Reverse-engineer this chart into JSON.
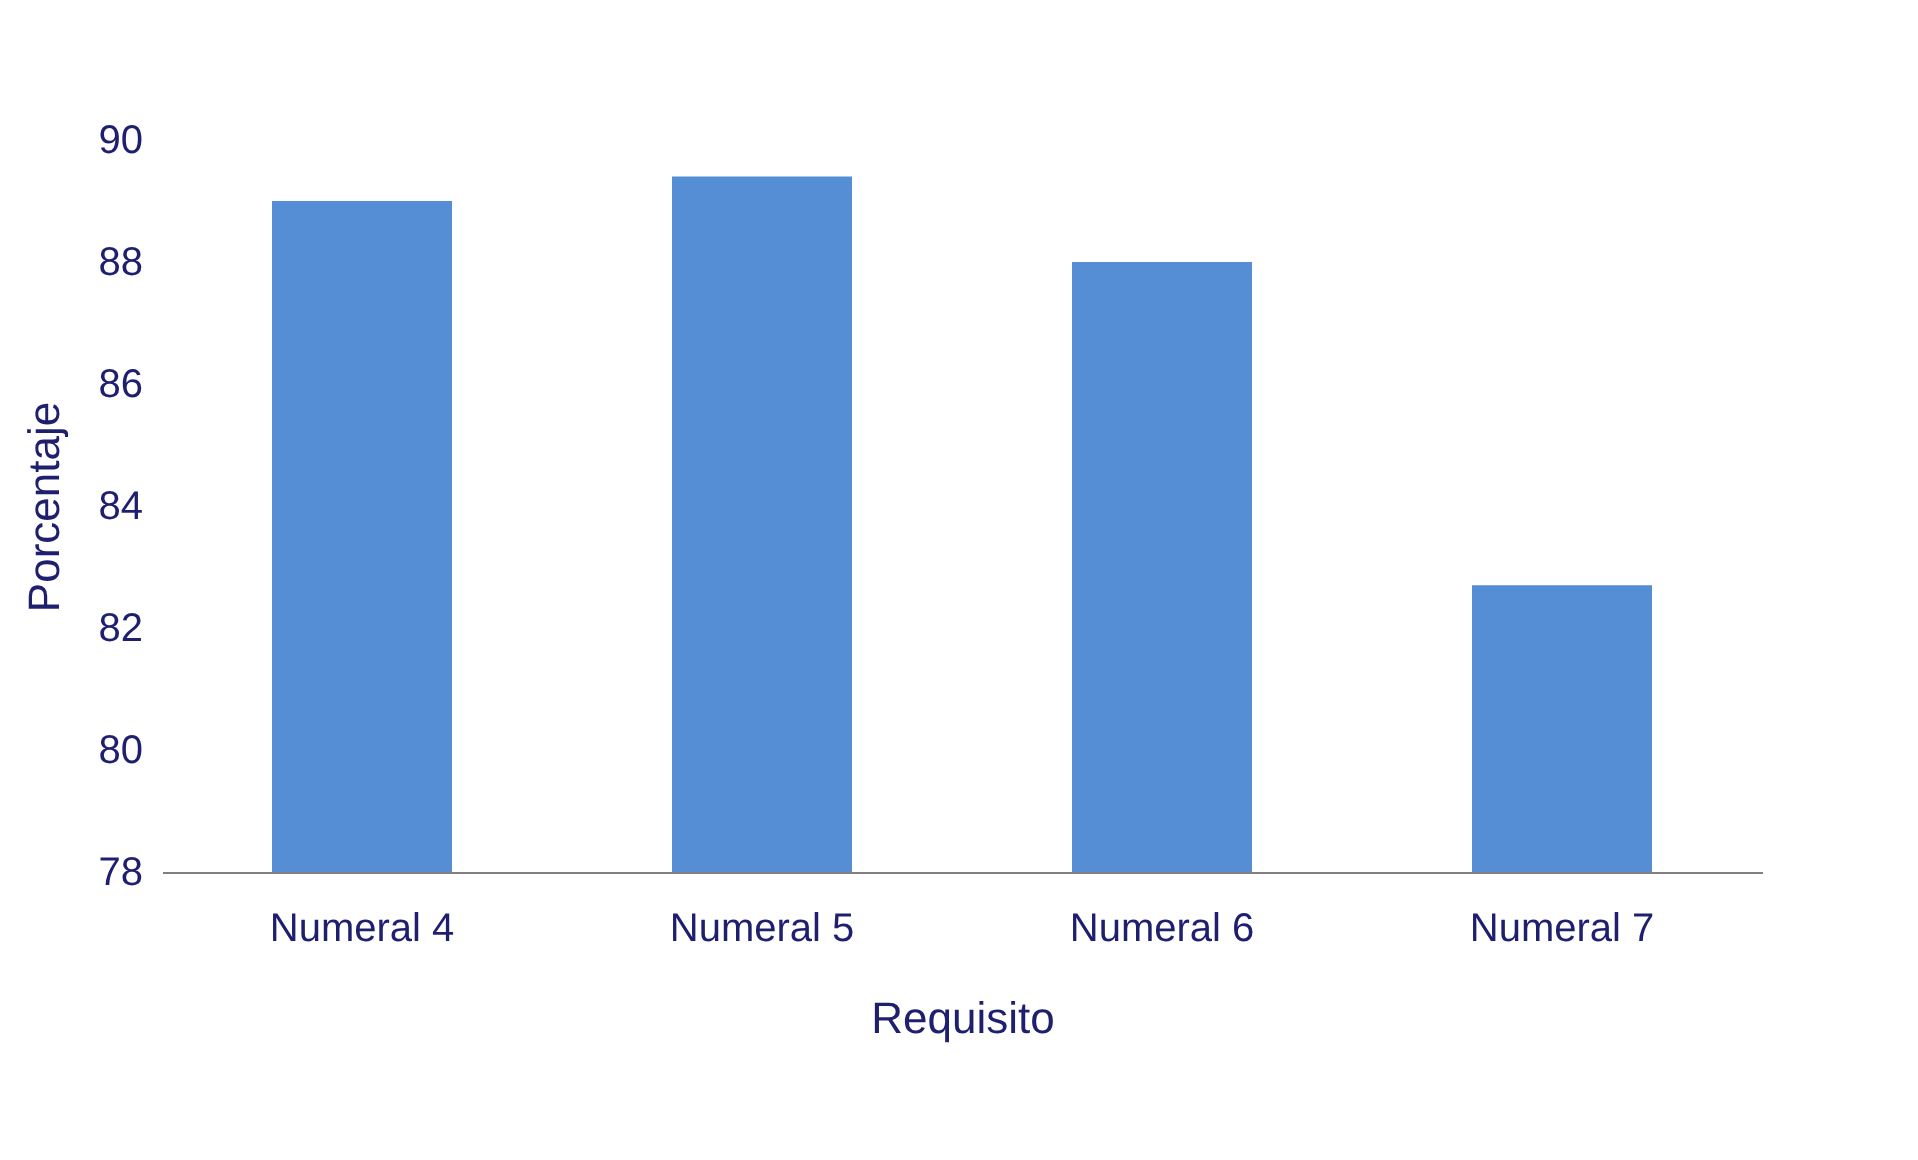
{
  "chart_data": {
    "type": "bar",
    "xlabel": "Requisito",
    "ylabel": "Porcentaje",
    "categories": [
      "Numeral 4",
      "Numeral 5",
      "Numeral 6",
      "Numeral 7"
    ],
    "values": [
      89.0,
      89.4,
      88.0,
      82.7
    ],
    "color": "#558ed5",
    "ylim": [
      78,
      90
    ],
    "yticks": [
      78,
      80,
      82,
      84,
      86,
      88,
      90
    ],
    "grid": false
  }
}
